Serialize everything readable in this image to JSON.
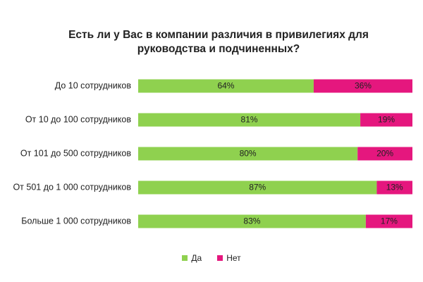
{
  "chart_data": {
    "type": "bar",
    "orientation": "horizontal-stacked-100",
    "title": "Есть ли у Вас в компании различия в привилегиях для руководства и подчиненных?",
    "categories": [
      "До 10 сотрудников",
      "От 10 до 100 сотрудников",
      "От 101 до 500 сотрудников",
      "От 501 до 1 000 сотрудников",
      "Больше 1 000 сотрудников"
    ],
    "series": [
      {
        "name": "Да",
        "color": "#8fd14f",
        "values": [
          64,
          81,
          80,
          87,
          83
        ]
      },
      {
        "name": "Нет",
        "color": "#e5177e",
        "values": [
          36,
          19,
          20,
          13,
          17
        ]
      }
    ],
    "value_suffix": "%",
    "xlim": [
      0,
      100
    ],
    "grid": false,
    "legend_position": "bottom"
  }
}
